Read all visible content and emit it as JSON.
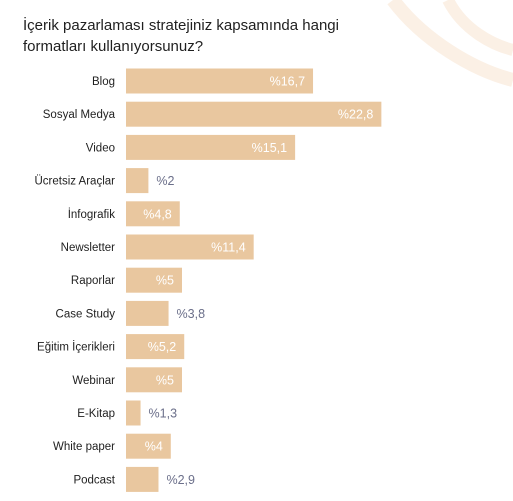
{
  "title": "İçerik pazarlaması stratejiniz kapsamında hangi formatları kullanıyorsunuz?",
  "colors": {
    "bar": "#e9c79f",
    "label_inside": "#ffffff",
    "label_outside": "#6b6f8a",
    "decoration": "#fbf0e5"
  },
  "chart_data": {
    "type": "bar",
    "orientation": "horizontal",
    "categories": [
      "Blog",
      "Sosyal Medya",
      "Video",
      "Ücretsiz Araçlar",
      "İnfografik",
      "Newsletter",
      "Raporlar",
      "Case Study",
      "Eğitim İçerikleri",
      "Webinar",
      "E-Kitap",
      "White paper",
      "Podcast"
    ],
    "values": [
      16.7,
      22.8,
      15.1,
      2,
      4.8,
      11.4,
      5,
      3.8,
      5.2,
      5,
      1.3,
      4,
      2.9
    ],
    "value_labels": [
      "%16,7",
      "%22,8",
      "%15,1",
      "%2",
      "%4,8",
      "%11,4",
      "%5",
      "%3,8",
      "%5,2",
      "%5",
      "%1,3",
      "%4",
      "%2,9"
    ],
    "grid": false,
    "legend": "none"
  }
}
